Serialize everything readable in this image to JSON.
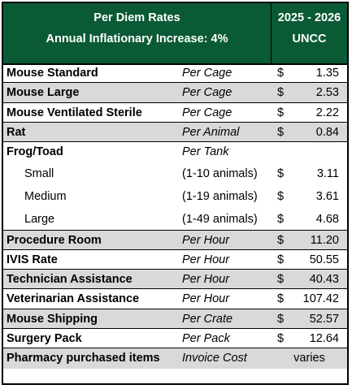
{
  "header": {
    "title": "Per Diem Rates",
    "subtitle": "Annual Inflationary Increase: 4%",
    "period": "2025 - 2026",
    "institution": "UNCC"
  },
  "rows": [
    {
      "name": "Mouse Standard",
      "unit": "Per Cage",
      "currency": "$",
      "price": "1.35"
    },
    {
      "name": "Mouse Large",
      "unit": "Per Cage",
      "currency": "$",
      "price": "2.53"
    },
    {
      "name": "Mouse Ventilated Sterile",
      "unit": "Per Cage",
      "currency": "$",
      "price": "2.22"
    },
    {
      "name": "Rat",
      "unit": "Per Animal",
      "currency": "$",
      "price": "0.84"
    },
    {
      "name": "Frog/Toad",
      "unit": "Per Tank",
      "items": [
        {
          "name": "Small",
          "unit": "(1-10 animals)",
          "currency": "$",
          "price": "3.11"
        },
        {
          "name": "Medium",
          "unit": "(1-19 animals)",
          "currency": "$",
          "price": "3.61"
        },
        {
          "name": "Large",
          "unit": "(1-49 animals)",
          "currency": "$",
          "price": "4.68"
        }
      ]
    },
    {
      "name": "Procedure Room",
      "unit": "Per Hour",
      "currency": "$",
      "price": "11.20"
    },
    {
      "name": "IVIS Rate",
      "unit": "Per Hour",
      "currency": "$",
      "price": "50.55"
    },
    {
      "name": "Technician Assistance",
      "unit": "Per Hour",
      "currency": "$",
      "price": "40.43"
    },
    {
      "name": "Veterinarian Assistance",
      "unit": "Per Hour",
      "currency": "$",
      "price": "107.42"
    },
    {
      "name": "Mouse Shipping",
      "unit": "Per Crate",
      "currency": "$",
      "price": "52.57"
    },
    {
      "name": "Surgery Pack",
      "unit": "Per Pack",
      "currency": "$",
      "price": "12.64"
    },
    {
      "name": "Pharmacy purchased items",
      "unit": "Invoice Cost",
      "price": "varies"
    }
  ]
}
